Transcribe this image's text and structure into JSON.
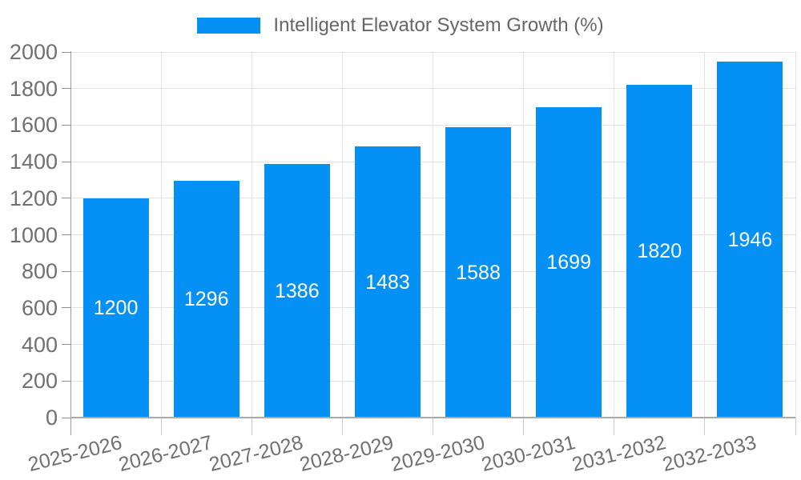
{
  "legend": {
    "label": "Intelligent Elevator System Growth (%)"
  },
  "chart_data": {
    "type": "bar",
    "title": "Intelligent Elevator System Growth (%)",
    "categories": [
      "2025-2026",
      "2026-2027",
      "2027-2028",
      "2028-2029",
      "2029-2030",
      "2030-2031",
      "2031-2032",
      "2032-2033"
    ],
    "values": [
      1200,
      1296,
      1386,
      1483,
      1588,
      1699,
      1820,
      1946
    ],
    "xlabel": "",
    "ylabel": "",
    "ylim": [
      0,
      2000
    ],
    "ytick_step": 200,
    "grid": true,
    "legend_position": "top-center",
    "xtick_rotation_deg": -14,
    "bar_color": "#0590f5",
    "value_label_color": "#ffffff",
    "axis_label_color": "#707070",
    "grid_color": "#e4e4e4",
    "background_color": "#ffffff"
  }
}
